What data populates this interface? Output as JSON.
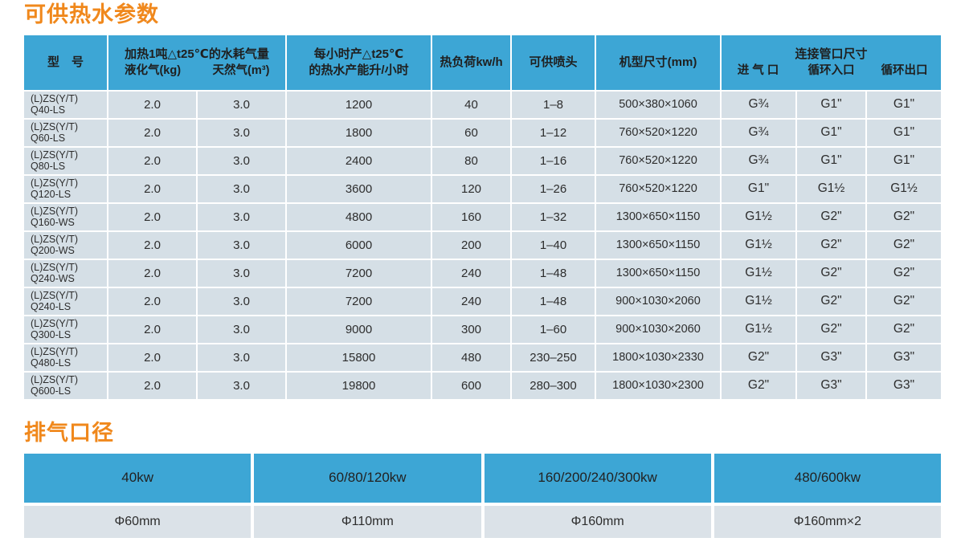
{
  "colors": {
    "header_blue": "#3da6d5",
    "row_bg": "#d5dfe6",
    "value_row_bg": "#dbe2e8",
    "title_orange": "#f0881c"
  },
  "section1": {
    "title": "可供热水参数",
    "table": {
      "header": {
        "model": "型　号",
        "gas_group_title": "加热1吨△t25℃的水耗气量",
        "gas_sub1": "液化气(kg)",
        "gas_sub2": "天然气(m³)",
        "capacity_line1": "每小时产△t25℃",
        "capacity_line2": "的热水产能升/小时",
        "heat_load": "热负荷kw/h",
        "nozzles": "可供喷头",
        "dims": "机型尺寸(mm)",
        "ports_group_title": "连接管口尺寸",
        "ports_sub1": "进 气 口",
        "ports_sub2": "循环入口",
        "ports_sub3": "循环出口"
      },
      "rows": [
        {
          "model1": "(L)ZS(Y/T)",
          "model2": "Q40-LS",
          "lpg": "2.0",
          "ng": "3.0",
          "capacity": "1200",
          "load": "40",
          "nozzles": "1–8",
          "dims": "500×380×1060",
          "inlet": "G¾",
          "circ_in": "G1\"",
          "circ_out": "G1\""
        },
        {
          "model1": "(L)ZS(Y/T)",
          "model2": "Q60-LS",
          "lpg": "2.0",
          "ng": "3.0",
          "capacity": "1800",
          "load": "60",
          "nozzles": "1–12",
          "dims": "760×520×1220",
          "inlet": "G¾",
          "circ_in": "G1\"",
          "circ_out": "G1\""
        },
        {
          "model1": "(L)ZS(Y/T)",
          "model2": "Q80-LS",
          "lpg": "2.0",
          "ng": "3.0",
          "capacity": "2400",
          "load": "80",
          "nozzles": "1–16",
          "dims": "760×520×1220",
          "inlet": "G¾",
          "circ_in": "G1\"",
          "circ_out": "G1\""
        },
        {
          "model1": "(L)ZS(Y/T)",
          "model2": "Q120-LS",
          "lpg": "2.0",
          "ng": "3.0",
          "capacity": "3600",
          "load": "120",
          "nozzles": "1–26",
          "dims": "760×520×1220",
          "inlet": "G1\"",
          "circ_in": "G1½",
          "circ_out": "G1½"
        },
        {
          "model1": "(L)ZS(Y/T)",
          "model2": "Q160-WS",
          "lpg": "2.0",
          "ng": "3.0",
          "capacity": "4800",
          "load": "160",
          "nozzles": "1–32",
          "dims": "1300×650×1150",
          "inlet": "G1½",
          "circ_in": "G2\"",
          "circ_out": "G2\""
        },
        {
          "model1": "(L)ZS(Y/T)",
          "model2": "Q200-WS",
          "lpg": "2.0",
          "ng": "3.0",
          "capacity": "6000",
          "load": "200",
          "nozzles": "1–40",
          "dims": "1300×650×1150",
          "inlet": "G1½",
          "circ_in": "G2\"",
          "circ_out": "G2\""
        },
        {
          "model1": "(L)ZS(Y/T)",
          "model2": "Q240-WS",
          "lpg": "2.0",
          "ng": "3.0",
          "capacity": "7200",
          "load": "240",
          "nozzles": "1–48",
          "dims": "1300×650×1150",
          "inlet": "G1½",
          "circ_in": "G2\"",
          "circ_out": "G2\""
        },
        {
          "model1": "(L)ZS(Y/T)",
          "model2": "Q240-LS",
          "lpg": "2.0",
          "ng": "3.0",
          "capacity": "7200",
          "load": "240",
          "nozzles": "1–48",
          "dims": "900×1030×2060",
          "inlet": "G1½",
          "circ_in": "G2\"",
          "circ_out": "G2\""
        },
        {
          "model1": "(L)ZS(Y/T)",
          "model2": "Q300-LS",
          "lpg": "2.0",
          "ng": "3.0",
          "capacity": "9000",
          "load": "300",
          "nozzles": "1–60",
          "dims": "900×1030×2060",
          "inlet": "G1½",
          "circ_in": "G2\"",
          "circ_out": "G2\""
        },
        {
          "model1": "(L)ZS(Y/T)",
          "model2": "Q480-LS",
          "lpg": "2.0",
          "ng": "3.0",
          "capacity": "15800",
          "load": "480",
          "nozzles": "230–250",
          "dims": "1800×1030×2330",
          "inlet": "G2\"",
          "circ_in": "G3\"",
          "circ_out": "G3\""
        },
        {
          "model1": "(L)ZS(Y/T)",
          "model2": "Q600-LS",
          "lpg": "2.0",
          "ng": "3.0",
          "capacity": "19800",
          "load": "600",
          "nozzles": "280–300",
          "dims": "1800×1030×2300",
          "inlet": "G2\"",
          "circ_in": "G3\"",
          "circ_out": "G3\""
        }
      ]
    }
  },
  "section2": {
    "title": "排气口径",
    "columns": [
      {
        "power": "40kw",
        "diameter": "Φ60mm"
      },
      {
        "power": "60/80/120kw",
        "diameter": "Φ110mm"
      },
      {
        "power": "160/200/240/300kw",
        "diameter": "Φ160mm"
      },
      {
        "power": "480/600kw",
        "diameter": "Φ160mm×2"
      }
    ]
  }
}
